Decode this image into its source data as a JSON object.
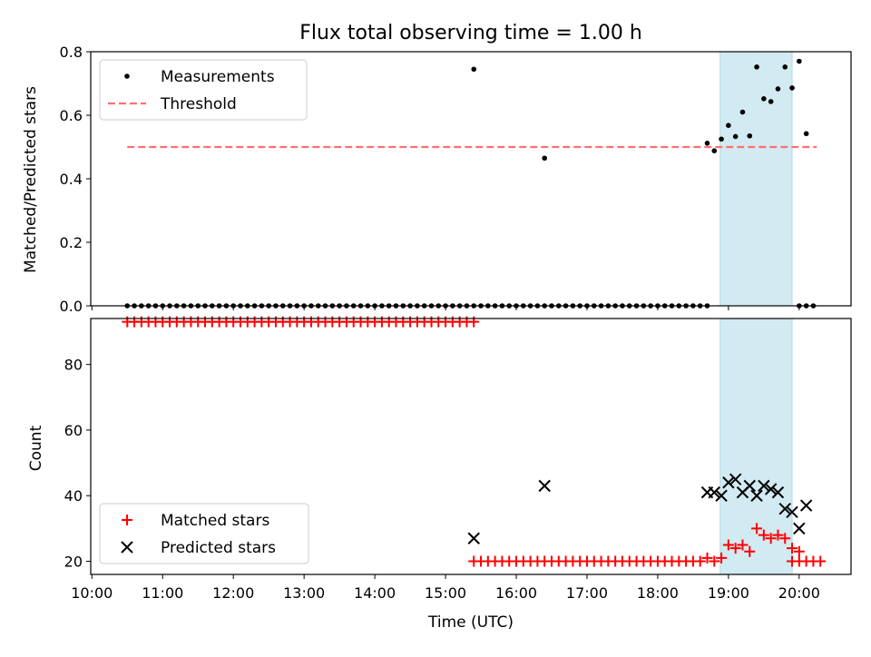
{
  "chart_data": [
    {
      "type": "scatter",
      "title": "Flux total observing time = 1.00 h",
      "ylabel": "Matched/Predicted stars",
      "ylim": [
        0,
        0.8
      ],
      "yticks": [
        "0.0",
        "0.2",
        "0.4",
        "0.6",
        "0.8"
      ],
      "grid": false,
      "legend_position": "top-left",
      "threshold": {
        "name": "Threshold",
        "y": 0.5,
        "x_start": "10:30",
        "x_end": "20:15",
        "color": "#ff7070"
      },
      "shaded_interval": {
        "x_start": "18:53",
        "x_end": "19:54",
        "color": "#add8e6"
      },
      "series": [
        {
          "name": "Measurements",
          "color": "#000000",
          "low_group": {
            "y": 0.0,
            "times": [
              "10:30",
              "10:36",
              "10:42",
              "10:48",
              "10:54",
              "11:00",
              "11:06",
              "11:12",
              "11:18",
              "11:24",
              "11:30",
              "11:36",
              "11:42",
              "11:48",
              "11:54",
              "12:00",
              "12:06",
              "12:12",
              "12:18",
              "12:24",
              "12:30",
              "12:36",
              "12:42",
              "12:48",
              "12:54",
              "13:00",
              "13:06",
              "13:12",
              "13:18",
              "13:24",
              "13:30",
              "13:36",
              "13:42",
              "13:48",
              "13:54",
              "14:00",
              "14:06",
              "14:12",
              "14:18",
              "14:24",
              "14:30",
              "14:36",
              "14:42",
              "14:48",
              "14:54",
              "15:00",
              "15:06",
              "15:12",
              "15:18",
              "15:24",
              "15:30",
              "15:36",
              "15:42",
              "15:48",
              "15:54",
              "16:00",
              "16:06",
              "16:12",
              "16:18",
              "16:24",
              "16:30",
              "16:36",
              "16:42",
              "16:48",
              "16:54",
              "17:00",
              "17:06",
              "17:12",
              "17:18",
              "17:24",
              "17:30",
              "17:36",
              "17:42",
              "17:48",
              "17:54",
              "18:00",
              "18:06",
              "18:12",
              "18:18",
              "18:24",
              "18:30",
              "18:36",
              "18:42",
              "20:00",
              "20:06",
              "20:12"
            ]
          },
          "points": [
            {
              "x": "15:24",
              "y": 0.745
            },
            {
              "x": "16:24",
              "y": 0.465
            },
            {
              "x": "18:42",
              "y": 0.512
            },
            {
              "x": "18:48",
              "y": 0.488
            },
            {
              "x": "18:54",
              "y": 0.525
            },
            {
              "x": "19:00",
              "y": 0.568
            },
            {
              "x": "19:06",
              "y": 0.533
            },
            {
              "x": "19:12",
              "y": 0.61
            },
            {
              "x": "19:18",
              "y": 0.535
            },
            {
              "x": "19:24",
              "y": 0.752
            },
            {
              "x": "19:30",
              "y": 0.652
            },
            {
              "x": "19:36",
              "y": 0.643
            },
            {
              "x": "19:42",
              "y": 0.683
            },
            {
              "x": "19:48",
              "y": 0.752
            },
            {
              "x": "19:54",
              "y": 0.686
            },
            {
              "x": "20:00",
              "y": 0.77
            },
            {
              "x": "20:06",
              "y": 0.542
            }
          ]
        }
      ]
    },
    {
      "type": "scatter",
      "xlabel": "Time (UTC)",
      "ylabel": "Count",
      "ylim": [
        16,
        94
      ],
      "yticks": [
        "20",
        "40",
        "60",
        "80"
      ],
      "xticks": [
        "10:00",
        "11:00",
        "12:00",
        "13:00",
        "14:00",
        "15:00",
        "16:00",
        "17:00",
        "18:00",
        "19:00",
        "20:00"
      ],
      "grid": false,
      "legend_position": "bottom-left",
      "shaded_interval": {
        "x_start": "18:53",
        "x_end": "19:54",
        "color": "#add8e6"
      },
      "series": [
        {
          "name": "Matched stars",
          "color": "#ff0000",
          "marker": "+",
          "groups": [
            {
              "y": 93,
              "from": "10:30",
              "to": "15:24",
              "step_minutes": 6
            },
            {
              "y": 20,
              "from": "15:24",
              "to": "18:36",
              "step_minutes": 6
            },
            {
              "y": 20,
              "from": "19:54",
              "to": "20:18",
              "step_minutes": 6
            }
          ],
          "points": [
            {
              "x": "18:42",
              "y": 21
            },
            {
              "x": "18:48",
              "y": 20
            },
            {
              "x": "18:54",
              "y": 21
            },
            {
              "x": "19:00",
              "y": 25
            },
            {
              "x": "19:06",
              "y": 24
            },
            {
              "x": "19:12",
              "y": 25
            },
            {
              "x": "19:18",
              "y": 23
            },
            {
              "x": "19:24",
              "y": 30
            },
            {
              "x": "19:30",
              "y": 28
            },
            {
              "x": "19:36",
              "y": 27
            },
            {
              "x": "19:42",
              "y": 28
            },
            {
              "x": "19:48",
              "y": 27
            },
            {
              "x": "19:54",
              "y": 24
            },
            {
              "x": "20:00",
              "y": 23
            }
          ]
        },
        {
          "name": "Predicted stars",
          "color": "#000000",
          "marker": "x",
          "points": [
            {
              "x": "15:24",
              "y": 27
            },
            {
              "x": "16:24",
              "y": 43
            },
            {
              "x": "18:42",
              "y": 41
            },
            {
              "x": "18:48",
              "y": 41
            },
            {
              "x": "18:54",
              "y": 40
            },
            {
              "x": "19:00",
              "y": 44
            },
            {
              "x": "19:06",
              "y": 45
            },
            {
              "x": "19:12",
              "y": 41
            },
            {
              "x": "19:18",
              "y": 43
            },
            {
              "x": "19:24",
              "y": 40
            },
            {
              "x": "19:30",
              "y": 43
            },
            {
              "x": "19:36",
              "y": 42
            },
            {
              "x": "19:42",
              "y": 41
            },
            {
              "x": "19:48",
              "y": 36
            },
            {
              "x": "19:54",
              "y": 35
            },
            {
              "x": "20:00",
              "y": 30
            },
            {
              "x": "20:06",
              "y": 37
            }
          ]
        }
      ]
    }
  ]
}
